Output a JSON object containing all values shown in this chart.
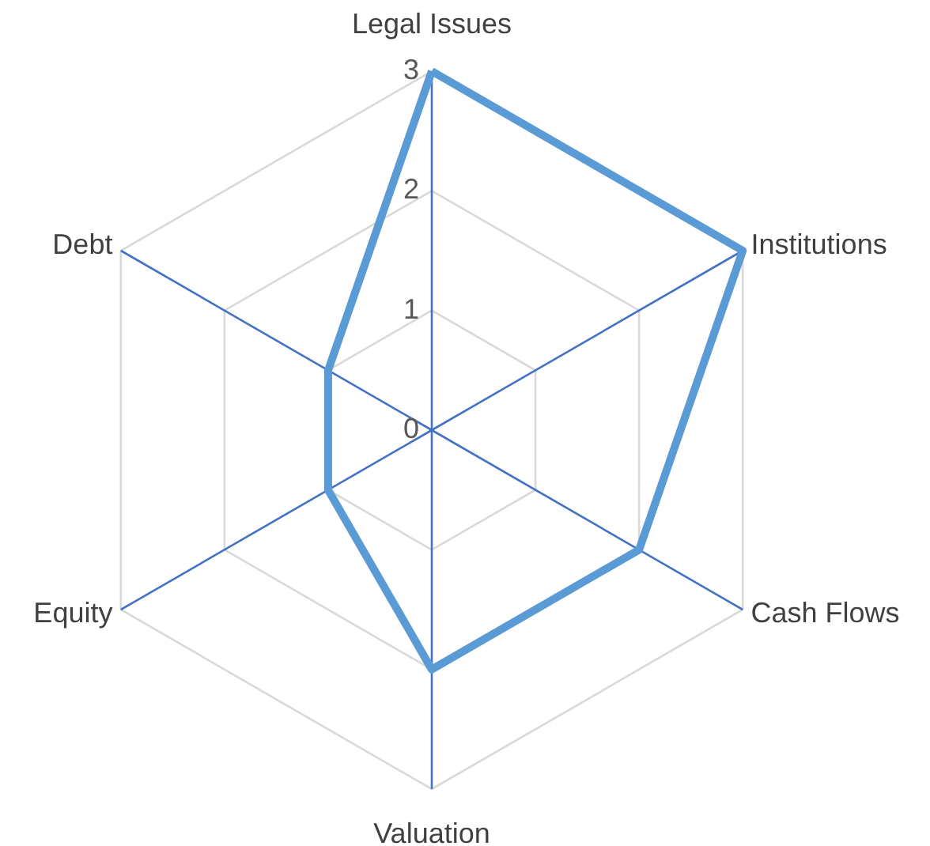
{
  "chart_data": {
    "type": "radar",
    "categories": [
      "Legal Issues",
      "Institutions",
      "Cash Flows",
      "Valuation",
      "Equity",
      "Debt"
    ],
    "series": [
      {
        "color": "#5b9bd5",
        "values": [
          3,
          3,
          2,
          2,
          1,
          1
        ]
      }
    ],
    "ylim": [
      0,
      3
    ],
    "yticks": [
      0,
      1,
      2,
      3
    ],
    "grid": true,
    "marker": "none",
    "line_style": "solid"
  }
}
